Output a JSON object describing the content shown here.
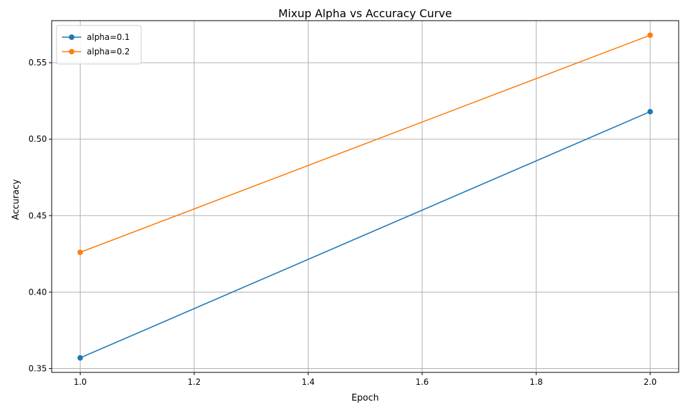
{
  "chart_data": {
    "type": "line",
    "title": "Mixup Alpha vs Accuracy Curve",
    "xlabel": "Epoch",
    "ylabel": "Accuracy",
    "xlim": [
      0.95,
      2.05
    ],
    "ylim": [
      0.3475,
      0.5775
    ],
    "xticks": [
      1.0,
      1.2,
      1.4,
      1.6,
      1.8,
      2.0
    ],
    "xtick_labels": [
      "1.0",
      "1.2",
      "1.4",
      "1.6",
      "1.8",
      "2.0"
    ],
    "yticks": [
      0.35,
      0.4,
      0.45,
      0.5,
      0.55
    ],
    "ytick_labels": [
      "0.35",
      "0.40",
      "0.45",
      "0.50",
      "0.55"
    ],
    "grid": true,
    "legend_position": "top-left",
    "x": [
      1.0,
      2.0
    ],
    "series": [
      {
        "name": "alpha=0.1",
        "color": "#1f77b4",
        "marker": "circle",
        "values": [
          0.357,
          0.518
        ]
      },
      {
        "name": "alpha=0.2",
        "color": "#ff7f0e",
        "marker": "circle",
        "values": [
          0.426,
          0.568
        ]
      }
    ]
  }
}
